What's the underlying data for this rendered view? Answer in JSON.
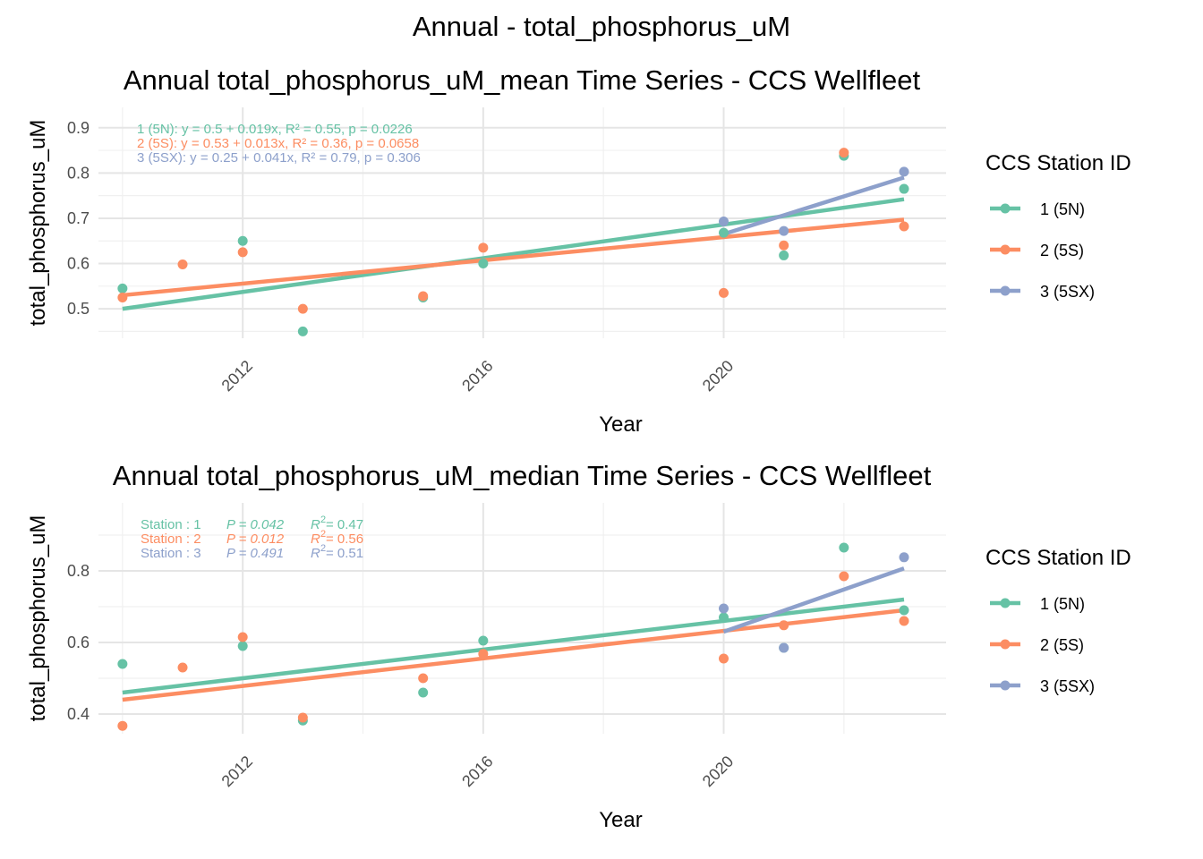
{
  "page_title": "Annual - total_phosphorus_uM",
  "colors": {
    "1 (5N)": "#66c2a5",
    "2 (5S)": "#fc8d62",
    "3 (5SX)": "#8da0cb"
  },
  "chart_data": [
    {
      "type": "scatter",
      "title": "Annual total_phosphorus_uM_mean Time Series - CCS Wellfleet",
      "xlabel": "Year",
      "ylabel": "total_phosphorus_uM",
      "xlim": [
        2009.6,
        2023.7
      ],
      "ylim": [
        0.435,
        0.945
      ],
      "x_ticks": [
        2012,
        2016,
        2020
      ],
      "y_ticks": [
        0.5,
        0.6,
        0.7,
        0.8,
        0.9
      ],
      "y_tick_labels": [
        "0.5",
        "0.6",
        "0.7",
        "0.8",
        "0.9"
      ],
      "grid": true,
      "legend_title": "CCS Station ID",
      "legend_position": "right",
      "series": [
        {
          "name": "1 (5N)",
          "color": "#66c2a5",
          "points": [
            [
              2010,
              0.545
            ],
            [
              2012,
              0.65
            ],
            [
              2013,
              0.45
            ],
            [
              2015,
              0.525
            ],
            [
              2016,
              0.6
            ],
            [
              2020,
              0.668
            ],
            [
              2021,
              0.618
            ],
            [
              2022,
              0.838
            ],
            [
              2023,
              0.765
            ]
          ],
          "fit": {
            "x": [
              2010,
              2023
            ],
            "y": [
              0.5,
              0.742
            ]
          }
        },
        {
          "name": "2 (5S)",
          "color": "#fc8d62",
          "points": [
            [
              2010,
              0.525
            ],
            [
              2011,
              0.598
            ],
            [
              2012,
              0.625
            ],
            [
              2013,
              0.5
            ],
            [
              2015,
              0.528
            ],
            [
              2016,
              0.635
            ],
            [
              2020,
              0.535
            ],
            [
              2021,
              0.64
            ],
            [
              2022,
              0.845
            ],
            [
              2023,
              0.682
            ]
          ],
          "fit": {
            "x": [
              2010,
              2023
            ],
            "y": [
              0.53,
              0.697
            ]
          }
        },
        {
          "name": "3 (5SX)",
          "color": "#8da0cb",
          "points": [
            [
              2020,
              0.693
            ],
            [
              2021,
              0.672
            ],
            [
              2023,
              0.803
            ]
          ],
          "fit": {
            "x": [
              2020,
              2023
            ],
            "y": [
              0.665,
              0.79
            ]
          }
        }
      ],
      "annotations": [
        {
          "text": "1 (5N):  y = 0.5 + 0.019x,  R² = 0.55, p = 0.0226",
          "color": "#66c2a5"
        },
        {
          "text": "2 (5S):  y = 0.53 + 0.013x,  R² = 0.36, p = 0.0658",
          "color": "#fc8d62"
        },
        {
          "text": "3 (5SX):  y = 0.25 + 0.041x,  R² = 0.79, p = 0.306",
          "color": "#8da0cb"
        }
      ]
    },
    {
      "type": "scatter",
      "title": "Annual total_phosphorus_uM_median Time Series - CCS Wellfleet",
      "xlabel": "Year",
      "ylabel": "total_phosphorus_uM",
      "xlim": [
        2009.6,
        2023.7
      ],
      "ylim": [
        0.345,
        0.99
      ],
      "x_ticks": [
        2012,
        2016,
        2020
      ],
      "y_ticks": [
        0.4,
        0.6,
        0.8
      ],
      "y_tick_labels": [
        "0.4",
        "0.6",
        "0.8"
      ],
      "grid": true,
      "legend_title": "CCS Station ID",
      "legend_position": "right",
      "series": [
        {
          "name": "1 (5N)",
          "color": "#66c2a5",
          "points": [
            [
              2010,
              0.54
            ],
            [
              2012,
              0.59
            ],
            [
              2013,
              0.382
            ],
            [
              2015,
              0.46
            ],
            [
              2016,
              0.605
            ],
            [
              2020,
              0.67
            ],
            [
              2021,
              0.585
            ],
            [
              2022,
              0.865
            ],
            [
              2023,
              0.69
            ]
          ],
          "fit": {
            "x": [
              2010,
              2023
            ],
            "y": [
              0.46,
              0.72
            ]
          }
        },
        {
          "name": "2 (5S)",
          "color": "#fc8d62",
          "points": [
            [
              2010,
              0.367
            ],
            [
              2011,
              0.53
            ],
            [
              2012,
              0.615
            ],
            [
              2013,
              0.39
            ],
            [
              2015,
              0.5
            ],
            [
              2016,
              0.568
            ],
            [
              2020,
              0.555
            ],
            [
              2021,
              0.648
            ],
            [
              2022,
              0.785
            ],
            [
              2023,
              0.66
            ]
          ],
          "fit": {
            "x": [
              2010,
              2023
            ],
            "y": [
              0.44,
              0.69
            ]
          }
        },
        {
          "name": "3 (5SX)",
          "color": "#8da0cb",
          "points": [
            [
              2020,
              0.695
            ],
            [
              2021,
              0.585
            ],
            [
              2023,
              0.838
            ]
          ],
          "fit": {
            "x": [
              2020,
              2023
            ],
            "y": [
              0.63,
              0.807
            ]
          }
        }
      ],
      "annotations": [
        {
          "label": "Station : 1",
          "p": "P = 0.042",
          "r2": "R",
          "sup": "2",
          "r2_value": " = 0.47",
          "color": "#66c2a5"
        },
        {
          "label": "Station : 2",
          "p": "P = 0.012",
          "r2": "R",
          "sup": "2",
          "r2_value": " = 0.56",
          "color": "#fc8d62"
        },
        {
          "label": "Station : 3",
          "p": "P = 0.491",
          "r2": "R",
          "sup": "2",
          "r2_value": " = 0.51",
          "color": "#8da0cb"
        }
      ]
    }
  ]
}
